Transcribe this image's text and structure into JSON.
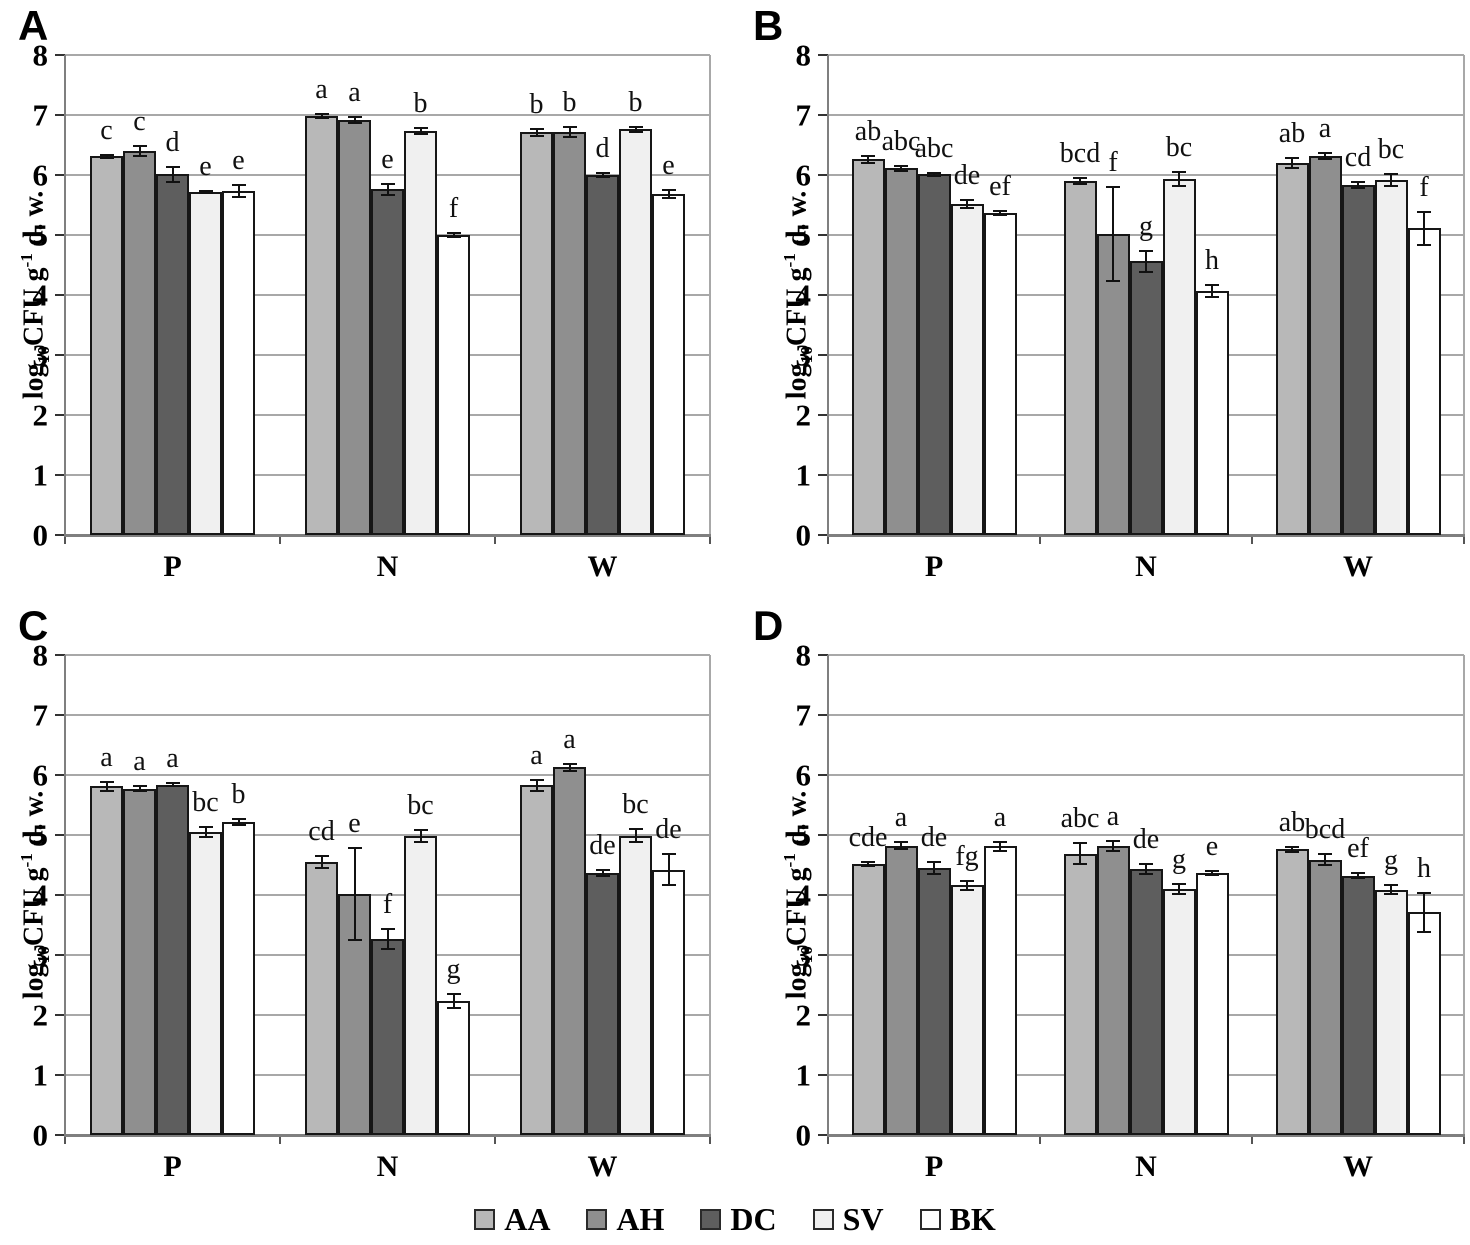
{
  "axes": {
    "ylabel": "log10CFU g-1 d. w.",
    "ylabel_parts": {
      "pre": "log",
      "sub": "10",
      "mid": "CFU g",
      "sup": "-1",
      "post": " d. w."
    },
    "ylim": [
      0,
      8
    ],
    "yticks": [
      0,
      1,
      2,
      3,
      4,
      5,
      6,
      7,
      8
    ],
    "categories": [
      "P",
      "N",
      "W"
    ]
  },
  "legend": [
    {
      "label": "AA",
      "color": "#b8b8b8"
    },
    {
      "label": "AH",
      "color": "#8f8f8f"
    },
    {
      "label": "DC",
      "color": "#5e5e5e"
    },
    {
      "label": "SV",
      "color": "#f0f0f0"
    },
    {
      "label": "BK",
      "color": "#ffffff"
    }
  ],
  "chart_data": [
    {
      "panel": "A",
      "type": "bar",
      "categories": [
        "P",
        "N",
        "W"
      ],
      "xlabel": "",
      "ylabel": "log10CFU g-1 d. w.",
      "ylim": [
        0,
        8
      ],
      "grid": true,
      "series": [
        {
          "name": "AA",
          "values": [
            6.31,
            6.98,
            6.71
          ],
          "errors": [
            0.03,
            0.03,
            0.06
          ],
          "letters": [
            "c",
            "a",
            "b"
          ]
        },
        {
          "name": "AH",
          "values": [
            6.4,
            6.91,
            6.72
          ],
          "errors": [
            0.09,
            0.05,
            0.08
          ],
          "letters": [
            "c",
            "a",
            "b"
          ]
        },
        {
          "name": "DC",
          "values": [
            6.01,
            5.76,
            6.0
          ],
          "errors": [
            0.12,
            0.09,
            0.04
          ],
          "letters": [
            "d",
            "e",
            "d"
          ]
        },
        {
          "name": "SV",
          "values": [
            5.72,
            6.74,
            6.76
          ],
          "errors": [
            0.02,
            0.05,
            0.04
          ],
          "letters": [
            "e",
            "b",
            "b"
          ]
        },
        {
          "name": "BK",
          "values": [
            5.74,
            5.0,
            5.68
          ],
          "errors": [
            0.1,
            0.03,
            0.07
          ],
          "letters": [
            "e",
            "f",
            "e"
          ]
        }
      ]
    },
    {
      "panel": "B",
      "type": "bar",
      "categories": [
        "P",
        "N",
        "W"
      ],
      "xlabel": "",
      "ylabel": "log10CFU g-1 d. w.",
      "ylim": [
        0,
        8
      ],
      "grid": true,
      "series": [
        {
          "name": "AA",
          "values": [
            6.26,
            5.9,
            6.2
          ],
          "errors": [
            0.06,
            0.05,
            0.08
          ],
          "letters": [
            "ab",
            "bcd",
            "ab"
          ]
        },
        {
          "name": "AH",
          "values": [
            6.11,
            5.02,
            6.31
          ],
          "errors": [
            0.04,
            0.78,
            0.05
          ],
          "letters": [
            "abc",
            "f",
            "a"
          ]
        },
        {
          "name": "DC",
          "values": [
            6.01,
            4.56,
            5.83
          ],
          "errors": [
            0.03,
            0.17,
            0.05
          ],
          "letters": [
            "abc",
            "g",
            "cd"
          ]
        },
        {
          "name": "SV",
          "values": [
            5.52,
            5.93,
            5.92
          ],
          "errors": [
            0.07,
            0.12,
            0.1
          ],
          "letters": [
            "de",
            "bc",
            "bc"
          ]
        },
        {
          "name": "BK",
          "values": [
            5.37,
            4.07,
            5.11
          ],
          "errors": [
            0.03,
            0.1,
            0.27
          ],
          "letters": [
            "ef",
            "h",
            "f"
          ]
        }
      ]
    },
    {
      "panel": "C",
      "type": "bar",
      "categories": [
        "P",
        "N",
        "W"
      ],
      "xlabel": "",
      "ylabel": "log10CFU g-1 d. w.",
      "ylim": [
        0,
        8
      ],
      "grid": true,
      "series": [
        {
          "name": "AA",
          "values": [
            5.81,
            4.55,
            5.83
          ],
          "errors": [
            0.07,
            0.1,
            0.09
          ],
          "letters": [
            "a",
            "cd",
            "a"
          ]
        },
        {
          "name": "AH",
          "values": [
            5.77,
            4.02,
            6.13
          ],
          "errors": [
            0.04,
            0.77,
            0.06
          ],
          "letters": [
            "a",
            "e",
            "a"
          ]
        },
        {
          "name": "DC",
          "values": [
            5.84,
            3.27,
            4.36
          ],
          "errors": [
            0.03,
            0.17,
            0.05
          ],
          "letters": [
            "a",
            "f",
            "de"
          ]
        },
        {
          "name": "SV",
          "values": [
            5.05,
            4.98,
            4.99
          ],
          "errors": [
            0.08,
            0.1,
            0.11
          ],
          "letters": [
            "bc",
            "bc",
            "bc"
          ]
        },
        {
          "name": "BK",
          "values": [
            5.21,
            2.23,
            4.42
          ],
          "errors": [
            0.05,
            0.12,
            0.26
          ],
          "letters": [
            "b",
            "g",
            "de"
          ]
        }
      ]
    },
    {
      "panel": "D",
      "type": "bar",
      "categories": [
        "P",
        "N",
        "W"
      ],
      "xlabel": "",
      "ylabel": "log10CFU g-1 d. w.",
      "ylim": [
        0,
        8
      ],
      "grid": true,
      "series": [
        {
          "name": "AA",
          "values": [
            4.52,
            4.69,
            4.76
          ],
          "errors": [
            0.03,
            0.17,
            0.04
          ],
          "letters": [
            "cde",
            "abc",
            "ab"
          ]
        },
        {
          "name": "AH",
          "values": [
            4.82,
            4.82,
            4.59
          ],
          "errors": [
            0.06,
            0.08,
            0.09
          ],
          "letters": [
            "a",
            "a",
            "bcd"
          ]
        },
        {
          "name": "DC",
          "values": [
            4.45,
            4.43,
            4.32
          ],
          "errors": [
            0.1,
            0.08,
            0.04
          ],
          "letters": [
            "de",
            "de",
            "ef"
          ]
        },
        {
          "name": "SV",
          "values": [
            4.16,
            4.1,
            4.09
          ],
          "errors": [
            0.08,
            0.08,
            0.07
          ],
          "letters": [
            "fg",
            "g",
            "g"
          ]
        },
        {
          "name": "BK",
          "values": [
            4.81,
            4.37,
            3.71
          ],
          "errors": [
            0.08,
            0.03,
            0.32
          ],
          "letters": [
            "a",
            "e",
            "h"
          ]
        }
      ]
    }
  ]
}
